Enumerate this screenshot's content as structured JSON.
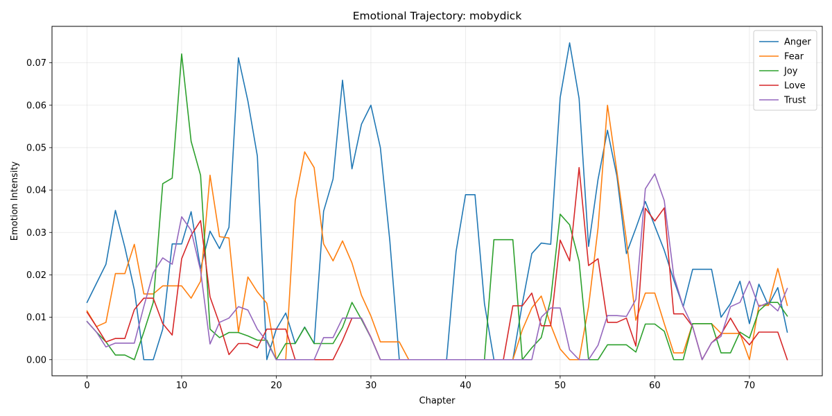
{
  "chart_data": {
    "type": "line",
    "title": "Emotional Trajectory: mobydick",
    "xlabel": "Chapter",
    "ylabel": "Emotion Intensity",
    "xlim": [
      -3.7,
      77.7
    ],
    "ylim": [
      -0.0038,
      0.0786
    ],
    "xticks": [
      0,
      10,
      20,
      30,
      40,
      50,
      60,
      70
    ],
    "yticks": [
      0.0,
      0.01,
      0.02,
      0.03,
      0.04,
      0.05,
      0.06,
      0.07
    ],
    "ytick_labels": [
      "0.00",
      "0.01",
      "0.02",
      "0.03",
      "0.04",
      "0.05",
      "0.06",
      "0.07"
    ],
    "grid": true,
    "legend": "top-right",
    "x": [
      0,
      1,
      2,
      3,
      4,
      5,
      6,
      7,
      8,
      9,
      10,
      11,
      12,
      13,
      14,
      15,
      16,
      17,
      18,
      19,
      20,
      21,
      22,
      23,
      24,
      25,
      26,
      27,
      28,
      29,
      30,
      31,
      32,
      33,
      34,
      35,
      36,
      37,
      38,
      39,
      40,
      41,
      42,
      43,
      44,
      45,
      46,
      47,
      48,
      49,
      50,
      51,
      52,
      53,
      54,
      55,
      56,
      57,
      58,
      59,
      60,
      61,
      62,
      63,
      64,
      65,
      66,
      67,
      68,
      69,
      70,
      71,
      72,
      73,
      74
    ],
    "series": [
      {
        "name": "Anger",
        "color": "#1f77b4",
        "values": [
          0.0135,
          0.018,
          0.0225,
          0.0352,
          0.0265,
          0.0165,
          0.0,
          0.0,
          0.0072,
          0.0273,
          0.0273,
          0.0349,
          0.0215,
          0.0303,
          0.0262,
          0.0312,
          0.0712,
          0.061,
          0.048,
          0.0,
          0.0072,
          0.011,
          0.0038,
          0.0077,
          0.0038,
          0.035,
          0.0426,
          0.0659,
          0.045,
          0.0555,
          0.06,
          0.05,
          0.028,
          0.0,
          0.0,
          0.0,
          0.0,
          0.0,
          0.0,
          0.0255,
          0.0389,
          0.0389,
          0.0132,
          0.0,
          0.0,
          0.0,
          0.0132,
          0.025,
          0.0275,
          0.0272,
          0.0618,
          0.0747,
          0.0616,
          0.0267,
          0.0425,
          0.0541,
          0.0432,
          0.025,
          0.031,
          0.0373,
          0.0315,
          0.0258,
          0.0188,
          0.0125,
          0.0213,
          0.0213,
          0.0213,
          0.01,
          0.0132,
          0.0185,
          0.0085,
          0.0178,
          0.0128,
          0.017,
          0.0065
        ]
      },
      {
        "name": "Fear",
        "color": "#ff7f0e",
        "values": [
          0.0115,
          0.0078,
          0.0088,
          0.0203,
          0.0203,
          0.0272,
          0.0155,
          0.0155,
          0.0174,
          0.0174,
          0.0174,
          0.0145,
          0.0185,
          0.0435,
          0.029,
          0.0287,
          0.0065,
          0.0195,
          0.016,
          0.0133,
          0.0,
          0.0,
          0.0375,
          0.049,
          0.0453,
          0.0273,
          0.0233,
          0.028,
          0.0228,
          0.0152,
          0.0103,
          0.0042,
          0.0042,
          0.0042,
          0.0,
          0.0,
          0.0,
          0.0,
          0.0,
          0.0,
          0.0,
          0.0,
          0.0,
          0.0,
          0.0,
          0.0,
          0.007,
          0.0122,
          0.015,
          0.0082,
          0.0025,
          0.0,
          0.0,
          0.0125,
          0.031,
          0.06,
          0.0443,
          0.0282,
          0.0093,
          0.0157,
          0.0157,
          0.0085,
          0.0016,
          0.0016,
          0.0085,
          0.0085,
          0.0085,
          0.0062,
          0.0062,
          0.0062,
          0.0,
          0.0128,
          0.0128,
          0.0215,
          0.0128
        ]
      },
      {
        "name": "Joy",
        "color": "#2ca02c",
        "values": [
          0.009,
          0.0065,
          0.0042,
          0.0011,
          0.0011,
          0.0,
          0.0065,
          0.0135,
          0.0415,
          0.0428,
          0.0721,
          0.0515,
          0.0435,
          0.0072,
          0.0052,
          0.0064,
          0.0064,
          0.0056,
          0.0046,
          0.0046,
          0.0,
          0.0038,
          0.0038,
          0.0076,
          0.0038,
          0.0038,
          0.0038,
          0.0076,
          0.0135,
          0.0095,
          0.0052,
          0.0,
          0.0,
          0.0,
          0.0,
          0.0,
          0.0,
          0.0,
          0.0,
          0.0,
          0.0,
          0.0,
          0.0,
          0.0283,
          0.0283,
          0.0283,
          0.0,
          0.0028,
          0.0052,
          0.0142,
          0.0343,
          0.0318,
          0.0232,
          0.0,
          0.0,
          0.0035,
          0.0035,
          0.0035,
          0.0018,
          0.0084,
          0.0084,
          0.0067,
          0.0,
          0.0,
          0.0085,
          0.0085,
          0.0085,
          0.0016,
          0.0016,
          0.0065,
          0.0051,
          0.0115,
          0.0135,
          0.0135,
          0.0103
        ]
      },
      {
        "name": "Love",
        "color": "#d62728",
        "values": [
          0.0112,
          0.0078,
          0.0042,
          0.005,
          0.005,
          0.0118,
          0.0145,
          0.0145,
          0.0085,
          0.0058,
          0.0238,
          0.0293,
          0.0328,
          0.0148,
          0.0085,
          0.0012,
          0.0038,
          0.0038,
          0.0028,
          0.0072,
          0.0072,
          0.0072,
          0.0,
          0.0,
          0.0,
          0.0,
          0.0,
          0.0045,
          0.0098,
          0.0098,
          0.0053,
          0.0,
          0.0,
          0.0,
          0.0,
          0.0,
          0.0,
          0.0,
          0.0,
          0.0,
          0.0,
          0.0,
          0.0,
          0.0,
          0.0,
          0.0127,
          0.0127,
          0.0157,
          0.008,
          0.008,
          0.0282,
          0.0233,
          0.0453,
          0.0222,
          0.0238,
          0.0088,
          0.0088,
          0.0098,
          0.0032,
          0.0357,
          0.0327,
          0.0358,
          0.0108,
          0.0108,
          0.0078,
          0.0,
          0.004,
          0.006,
          0.0098,
          0.006,
          0.0035,
          0.0065,
          0.0065,
          0.0065,
          0.0
        ]
      },
      {
        "name": "Trust",
        "color": "#9467bd",
        "values": [
          0.009,
          0.0065,
          0.003,
          0.0039,
          0.0039,
          0.0039,
          0.0125,
          0.0205,
          0.024,
          0.0225,
          0.0337,
          0.0305,
          0.021,
          0.0037,
          0.0088,
          0.0098,
          0.0125,
          0.0117,
          0.0072,
          0.0043,
          0.0,
          0.0,
          0.0,
          0.0,
          0.0,
          0.0052,
          0.0052,
          0.0098,
          0.0098,
          0.0098,
          0.0052,
          0.0,
          0.0,
          0.0,
          0.0,
          0.0,
          0.0,
          0.0,
          0.0,
          0.0,
          0.0,
          0.0,
          0.0,
          0.0,
          0.0,
          0.0,
          0.0,
          0.0,
          0.01,
          0.0122,
          0.0122,
          0.0023,
          0.0,
          0.0,
          0.0034,
          0.0104,
          0.0104,
          0.0102,
          0.0142,
          0.0403,
          0.0438,
          0.0375,
          0.0198,
          0.0125,
          0.0078,
          0.0,
          0.004,
          0.0055,
          0.0125,
          0.0135,
          0.0185,
          0.0125,
          0.0135,
          0.0115,
          0.0168
        ]
      }
    ]
  }
}
